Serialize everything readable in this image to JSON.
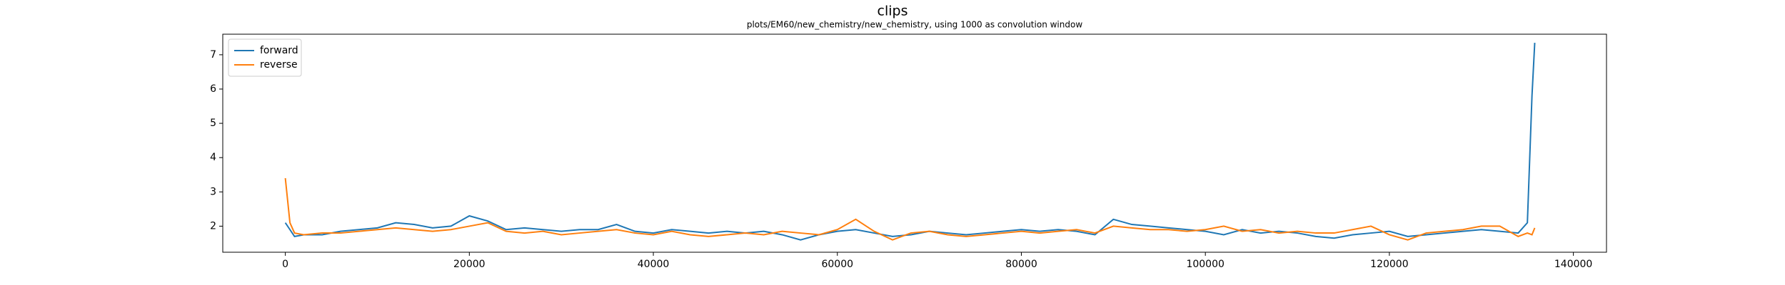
{
  "chart_data": {
    "type": "line",
    "title": "clips",
    "subtitle": "plots/EM60/new_chemistry/new_chemistry, using 1000 as convolution window",
    "x": [
      0,
      500,
      1000,
      2000,
      4000,
      6000,
      8000,
      10000,
      12000,
      14000,
      16000,
      18000,
      20000,
      22000,
      24000,
      26000,
      28000,
      30000,
      32000,
      34000,
      36000,
      38000,
      40000,
      42000,
      44000,
      46000,
      48000,
      50000,
      52000,
      54000,
      56000,
      58000,
      60000,
      62000,
      64000,
      66000,
      68000,
      70000,
      72000,
      74000,
      76000,
      78000,
      80000,
      82000,
      84000,
      86000,
      88000,
      90000,
      92000,
      94000,
      96000,
      98000,
      100000,
      102000,
      104000,
      106000,
      108000,
      110000,
      112000,
      114000,
      116000,
      118000,
      120000,
      122000,
      124000,
      126000,
      128000,
      130000,
      132000,
      134000,
      135000,
      135500,
      135800
    ],
    "series": [
      {
        "name": "forward",
        "color": "#1f77b4",
        "values": [
          2.1,
          1.9,
          1.7,
          1.75,
          1.75,
          1.85,
          1.9,
          1.95,
          2.1,
          2.05,
          1.95,
          2.0,
          2.3,
          2.15,
          1.9,
          1.95,
          1.9,
          1.85,
          1.9,
          1.9,
          2.05,
          1.85,
          1.8,
          1.9,
          1.85,
          1.8,
          1.85,
          1.8,
          1.85,
          1.75,
          1.6,
          1.75,
          1.85,
          1.9,
          1.8,
          1.7,
          1.75,
          1.85,
          1.8,
          1.75,
          1.8,
          1.85,
          1.9,
          1.85,
          1.9,
          1.85,
          1.75,
          2.2,
          2.05,
          2.0,
          1.95,
          1.9,
          1.85,
          1.75,
          1.9,
          1.8,
          1.85,
          1.8,
          1.7,
          1.65,
          1.75,
          1.8,
          1.85,
          1.7,
          1.75,
          1.8,
          1.85,
          1.9,
          1.85,
          1.8,
          2.1,
          5.8,
          7.35
        ]
      },
      {
        "name": "reverse",
        "color": "#ff7f0e",
        "values": [
          3.4,
          2.1,
          1.8,
          1.75,
          1.8,
          1.8,
          1.85,
          1.9,
          1.95,
          1.9,
          1.85,
          1.9,
          2.0,
          2.1,
          1.85,
          1.8,
          1.85,
          1.75,
          1.8,
          1.85,
          1.9,
          1.8,
          1.75,
          1.85,
          1.75,
          1.7,
          1.75,
          1.8,
          1.75,
          1.85,
          1.8,
          1.75,
          1.9,
          2.2,
          1.85,
          1.6,
          1.8,
          1.85,
          1.75,
          1.7,
          1.75,
          1.8,
          1.85,
          1.8,
          1.85,
          1.9,
          1.8,
          2.0,
          1.95,
          1.9,
          1.9,
          1.85,
          1.9,
          2.0,
          1.85,
          1.9,
          1.8,
          1.85,
          1.8,
          1.8,
          1.9,
          2.0,
          1.75,
          1.6,
          1.8,
          1.85,
          1.9,
          2.0,
          2.0,
          1.7,
          1.8,
          1.75,
          1.95
        ]
      }
    ],
    "xlim": [
      -6800,
      143600
    ],
    "xticks": [
      0,
      20000,
      40000,
      60000,
      80000,
      100000,
      120000,
      140000
    ],
    "ylim": [
      1.24,
      7.6
    ],
    "yticks": [
      2,
      3,
      4,
      5,
      6,
      7
    ],
    "grid": false,
    "legend": "upper left"
  }
}
